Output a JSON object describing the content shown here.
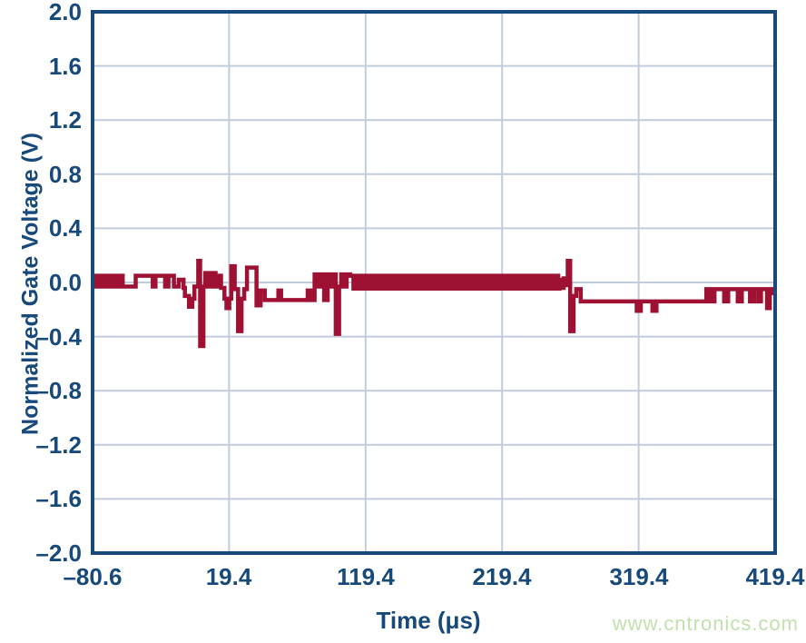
{
  "colors": {
    "axis": "#17497A",
    "grid": "#C1CCDC",
    "trace": "#9E1132",
    "watermark": "#C3E0AE",
    "background": "#FFFFFF"
  },
  "watermark": {
    "text": "www.cntronics.com"
  },
  "chart_data": {
    "type": "line",
    "title": "",
    "xlabel": "Time (μs)",
    "ylabel": "Normalized Gate Voltage (V)",
    "xlim": [
      -80.6,
      419.4
    ],
    "ylim": [
      -2.0,
      2.0
    ],
    "grid": true,
    "legend": "none",
    "interpolation": "step-after",
    "xticks": [
      -80.6,
      19.4,
      119.4,
      219.4,
      319.4,
      419.4
    ],
    "xtick_labels": [
      "–80.6",
      "19.4",
      "119.4",
      "219.4",
      "319.4",
      "419.4"
    ],
    "yticks": [
      2.0,
      1.6,
      1.2,
      0.8,
      0.4,
      0.0,
      -0.4,
      -0.8,
      -1.2,
      -1.6,
      -2.0
    ],
    "ytick_labels": [
      "2.0",
      "1.6",
      "1.2",
      "0.8",
      "0.4",
      "0.0",
      "–0.4",
      "–0.8",
      "–1.2",
      "–1.6",
      "–2.0"
    ],
    "series": [
      {
        "name": "normalized-gate-voltage",
        "color": "#9E1132",
        "line_width": 4.5,
        "points": [
          [
            -80.6,
            -0.03
          ],
          [
            -78.5,
            0.05
          ],
          [
            -76.5,
            -0.03
          ],
          [
            -75,
            0.05
          ],
          [
            -72.5,
            -0.03
          ],
          [
            -71,
            0.05
          ],
          [
            -68.5,
            -0.03
          ],
          [
            -66.5,
            0.05
          ],
          [
            -63.5,
            -0.03
          ],
          [
            -61.5,
            0.05
          ],
          [
            -58.5,
            -0.03
          ],
          [
            -49,
            0.05
          ],
          [
            -36.5,
            -0.03
          ],
          [
            -34.5,
            0.05
          ],
          [
            -27.5,
            -0.03
          ],
          [
            -25,
            0.05
          ],
          [
            -21,
            -0.03
          ],
          [
            -17.5,
            0.02
          ],
          [
            -14,
            -0.04
          ],
          [
            -13,
            -0.1
          ],
          [
            -10,
            -0.18
          ],
          [
            -7.5,
            -0.12
          ],
          [
            -6,
            -0.03
          ],
          [
            -3.2,
            0.16
          ],
          [
            -1.8,
            -0.47
          ],
          [
            0.6,
            -0.03
          ],
          [
            2,
            0.07
          ],
          [
            4.5,
            -0.03
          ],
          [
            6.5,
            0.07
          ],
          [
            9.5,
            -0.03
          ],
          [
            11.5,
            0.05
          ],
          [
            13.5,
            -0.04
          ],
          [
            16,
            -0.12
          ],
          [
            17.5,
            -0.19
          ],
          [
            19.5,
            -0.12
          ],
          [
            21,
            0.12
          ],
          [
            23.5,
            -0.05
          ],
          [
            26,
            -0.36
          ],
          [
            28.5,
            -0.12
          ],
          [
            30.5,
            -0.05
          ],
          [
            32.5,
            0.11
          ],
          [
            39.5,
            -0.17
          ],
          [
            42.5,
            -0.06
          ],
          [
            45.5,
            -0.13
          ],
          [
            55.5,
            -0.06
          ],
          [
            57.5,
            -0.13
          ],
          [
            77,
            -0.06
          ],
          [
            80,
            -0.13
          ],
          [
            82,
            0.06
          ],
          [
            84.5,
            -0.03
          ],
          [
            86.5,
            0.06
          ],
          [
            89,
            -0.13
          ],
          [
            91.6,
            0.06
          ],
          [
            94,
            -0.03
          ],
          [
            95.5,
            0.06
          ],
          [
            97.5,
            -0.38
          ],
          [
            100,
            -0.03
          ],
          [
            101.5,
            0.06
          ],
          [
            103.5,
            -0.03
          ],
          [
            105.5,
            0.06
          ],
          [
            108,
            0.05
          ],
          [
            110.5,
            -0.045
          ],
          [
            113,
            0.05
          ],
          [
            115.5,
            -0.045
          ],
          [
            118,
            0.05
          ],
          [
            120.5,
            -0.045
          ],
          [
            123,
            0.05
          ],
          [
            125.5,
            -0.045
          ],
          [
            128,
            0.05
          ],
          [
            130.5,
            -0.045
          ],
          [
            133,
            0.05
          ],
          [
            135.5,
            -0.045
          ],
          [
            138,
            0.05
          ],
          [
            140.5,
            -0.045
          ],
          [
            143,
            0.05
          ],
          [
            145.5,
            -0.045
          ],
          [
            148,
            0.05
          ],
          [
            150.5,
            -0.045
          ],
          [
            153,
            0.05
          ],
          [
            155.5,
            -0.045
          ],
          [
            158,
            0.05
          ],
          [
            160.5,
            -0.045
          ],
          [
            163,
            0.05
          ],
          [
            165.5,
            -0.045
          ],
          [
            168,
            0.05
          ],
          [
            170.5,
            -0.045
          ],
          [
            173,
            0.05
          ],
          [
            175.5,
            -0.045
          ],
          [
            178,
            0.05
          ],
          [
            180.5,
            -0.045
          ],
          [
            183,
            0.05
          ],
          [
            185.5,
            -0.045
          ],
          [
            188,
            0.05
          ],
          [
            190.5,
            -0.045
          ],
          [
            193,
            0.05
          ],
          [
            195.5,
            -0.045
          ],
          [
            198,
            0.05
          ],
          [
            200.5,
            -0.045
          ],
          [
            203,
            0.05
          ],
          [
            205.5,
            -0.045
          ],
          [
            208,
            0.05
          ],
          [
            210.5,
            -0.045
          ],
          [
            213,
            0.05
          ],
          [
            215.5,
            -0.045
          ],
          [
            218,
            0.05
          ],
          [
            220.5,
            -0.045
          ],
          [
            223,
            0.05
          ],
          [
            225.5,
            -0.045
          ],
          [
            228,
            0.05
          ],
          [
            230.5,
            -0.045
          ],
          [
            233,
            0.05
          ],
          [
            235.5,
            -0.045
          ],
          [
            238,
            0.05
          ],
          [
            240.5,
            -0.045
          ],
          [
            243,
            0.05
          ],
          [
            245.5,
            -0.045
          ],
          [
            248,
            0.05
          ],
          [
            250.5,
            -0.045
          ],
          [
            253,
            0.05
          ],
          [
            255.5,
            -0.045
          ],
          [
            258,
            0.05
          ],
          [
            260.5,
            -0.045
          ],
          [
            261.5,
            0.02
          ],
          [
            263,
            -0.04
          ],
          [
            264.5,
            0.03
          ],
          [
            266.5,
            -0.02
          ],
          [
            267.5,
            0.16
          ],
          [
            269.3,
            -0.36
          ],
          [
            271.7,
            -0.1
          ],
          [
            273.7,
            -0.05
          ],
          [
            277,
            -0.14
          ],
          [
            318,
            -0.21
          ],
          [
            321,
            -0.14
          ],
          [
            329.5,
            -0.21
          ],
          [
            332.5,
            -0.14
          ],
          [
            369,
            -0.05
          ],
          [
            372,
            -0.14
          ],
          [
            375,
            -0.05
          ],
          [
            382,
            -0.14
          ],
          [
            385,
            -0.05
          ],
          [
            392,
            -0.14
          ],
          [
            395,
            -0.05
          ],
          [
            401,
            -0.14
          ],
          [
            404,
            -0.05
          ],
          [
            407,
            -0.14
          ],
          [
            409,
            -0.05
          ],
          [
            413.5,
            -0.19
          ],
          [
            415.5,
            -0.05
          ],
          [
            417.5,
            -0.08
          ]
        ]
      }
    ]
  }
}
